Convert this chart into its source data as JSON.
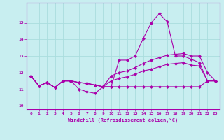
{
  "title": "",
  "xlabel": "Windchill (Refroidissement éolien,°C)",
  "bg_color": "#c8eef0",
  "grid_color": "#aadddd",
  "line_color": "#aa00aa",
  "x": [
    0,
    1,
    2,
    3,
    4,
    5,
    6,
    7,
    8,
    9,
    10,
    11,
    12,
    13,
    14,
    15,
    16,
    17,
    18,
    19,
    20,
    21,
    22,
    23
  ],
  "y_main": [
    11.8,
    11.2,
    11.4,
    11.1,
    11.5,
    11.5,
    11.0,
    10.85,
    10.75,
    11.15,
    11.15,
    12.75,
    12.75,
    13.0,
    14.05,
    15.0,
    15.55,
    15.05,
    13.0,
    13.0,
    12.8,
    12.6,
    11.5,
    11.5
  ],
  "y_upper": [
    11.8,
    11.2,
    11.4,
    11.1,
    11.5,
    11.5,
    11.4,
    11.35,
    11.25,
    11.15,
    11.8,
    12.0,
    12.1,
    12.3,
    12.55,
    12.75,
    12.9,
    13.05,
    13.1,
    13.15,
    13.0,
    13.0,
    12.0,
    11.5
  ],
  "y_lower": [
    11.8,
    11.2,
    11.4,
    11.1,
    11.5,
    11.5,
    11.4,
    11.35,
    11.25,
    11.15,
    11.5,
    11.65,
    11.75,
    11.9,
    12.1,
    12.2,
    12.35,
    12.5,
    12.55,
    12.6,
    12.45,
    12.4,
    11.5,
    11.5
  ],
  "y_flat": [
    11.8,
    11.2,
    11.4,
    11.1,
    11.5,
    11.5,
    11.4,
    11.35,
    11.25,
    11.15,
    11.15,
    11.15,
    11.15,
    11.15,
    11.15,
    11.15,
    11.15,
    11.15,
    11.15,
    11.15,
    11.15,
    11.15,
    11.5,
    11.5
  ],
  "ylim": [
    9.8,
    16.2
  ],
  "yticks": [
    10,
    11,
    12,
    13,
    14,
    15
  ],
  "xticks": [
    0,
    1,
    2,
    3,
    4,
    5,
    6,
    7,
    8,
    9,
    10,
    11,
    12,
    13,
    14,
    15,
    16,
    17,
    18,
    19,
    20,
    21,
    22,
    23
  ],
  "markersize": 2.5,
  "linewidth": 0.8
}
